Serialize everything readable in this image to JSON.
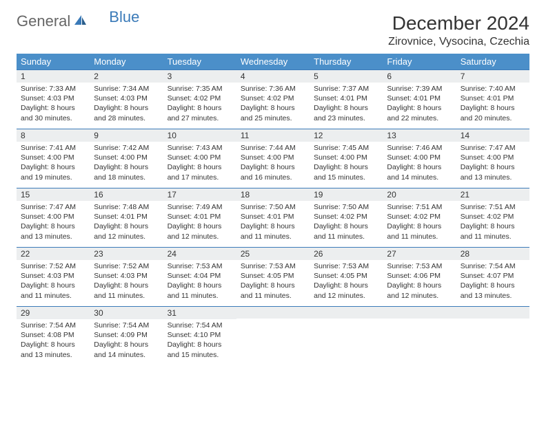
{
  "logo": {
    "part1": "General",
    "part2": "Blue"
  },
  "title": "December 2024",
  "location": "Zirovnice, Vysocina, Czechia",
  "colors": {
    "header_bg": "#4b8fc9",
    "header_text": "#ffffff",
    "daynum_bg": "#eceeef",
    "row_border": "#3a7ab8",
    "text": "#333333",
    "logo_blue": "#3a7ab8",
    "logo_gray": "#666666",
    "page_bg": "#ffffff"
  },
  "typography": {
    "base_font": "Arial",
    "title_size_pt": 21,
    "location_size_pt": 12,
    "header_size_pt": 10,
    "body_size_pt": 8
  },
  "weekdays": [
    "Sunday",
    "Monday",
    "Tuesday",
    "Wednesday",
    "Thursday",
    "Friday",
    "Saturday"
  ],
  "weeks": [
    [
      {
        "n": "1",
        "sr": "Sunrise: 7:33 AM",
        "ss": "Sunset: 4:03 PM",
        "d1": "Daylight: 8 hours",
        "d2": "and 30 minutes."
      },
      {
        "n": "2",
        "sr": "Sunrise: 7:34 AM",
        "ss": "Sunset: 4:03 PM",
        "d1": "Daylight: 8 hours",
        "d2": "and 28 minutes."
      },
      {
        "n": "3",
        "sr": "Sunrise: 7:35 AM",
        "ss": "Sunset: 4:02 PM",
        "d1": "Daylight: 8 hours",
        "d2": "and 27 minutes."
      },
      {
        "n": "4",
        "sr": "Sunrise: 7:36 AM",
        "ss": "Sunset: 4:02 PM",
        "d1": "Daylight: 8 hours",
        "d2": "and 25 minutes."
      },
      {
        "n": "5",
        "sr": "Sunrise: 7:37 AM",
        "ss": "Sunset: 4:01 PM",
        "d1": "Daylight: 8 hours",
        "d2": "and 23 minutes."
      },
      {
        "n": "6",
        "sr": "Sunrise: 7:39 AM",
        "ss": "Sunset: 4:01 PM",
        "d1": "Daylight: 8 hours",
        "d2": "and 22 minutes."
      },
      {
        "n": "7",
        "sr": "Sunrise: 7:40 AM",
        "ss": "Sunset: 4:01 PM",
        "d1": "Daylight: 8 hours",
        "d2": "and 20 minutes."
      }
    ],
    [
      {
        "n": "8",
        "sr": "Sunrise: 7:41 AM",
        "ss": "Sunset: 4:00 PM",
        "d1": "Daylight: 8 hours",
        "d2": "and 19 minutes."
      },
      {
        "n": "9",
        "sr": "Sunrise: 7:42 AM",
        "ss": "Sunset: 4:00 PM",
        "d1": "Daylight: 8 hours",
        "d2": "and 18 minutes."
      },
      {
        "n": "10",
        "sr": "Sunrise: 7:43 AM",
        "ss": "Sunset: 4:00 PM",
        "d1": "Daylight: 8 hours",
        "d2": "and 17 minutes."
      },
      {
        "n": "11",
        "sr": "Sunrise: 7:44 AM",
        "ss": "Sunset: 4:00 PM",
        "d1": "Daylight: 8 hours",
        "d2": "and 16 minutes."
      },
      {
        "n": "12",
        "sr": "Sunrise: 7:45 AM",
        "ss": "Sunset: 4:00 PM",
        "d1": "Daylight: 8 hours",
        "d2": "and 15 minutes."
      },
      {
        "n": "13",
        "sr": "Sunrise: 7:46 AM",
        "ss": "Sunset: 4:00 PM",
        "d1": "Daylight: 8 hours",
        "d2": "and 14 minutes."
      },
      {
        "n": "14",
        "sr": "Sunrise: 7:47 AM",
        "ss": "Sunset: 4:00 PM",
        "d1": "Daylight: 8 hours",
        "d2": "and 13 minutes."
      }
    ],
    [
      {
        "n": "15",
        "sr": "Sunrise: 7:47 AM",
        "ss": "Sunset: 4:00 PM",
        "d1": "Daylight: 8 hours",
        "d2": "and 13 minutes."
      },
      {
        "n": "16",
        "sr": "Sunrise: 7:48 AM",
        "ss": "Sunset: 4:01 PM",
        "d1": "Daylight: 8 hours",
        "d2": "and 12 minutes."
      },
      {
        "n": "17",
        "sr": "Sunrise: 7:49 AM",
        "ss": "Sunset: 4:01 PM",
        "d1": "Daylight: 8 hours",
        "d2": "and 12 minutes."
      },
      {
        "n": "18",
        "sr": "Sunrise: 7:50 AM",
        "ss": "Sunset: 4:01 PM",
        "d1": "Daylight: 8 hours",
        "d2": "and 11 minutes."
      },
      {
        "n": "19",
        "sr": "Sunrise: 7:50 AM",
        "ss": "Sunset: 4:02 PM",
        "d1": "Daylight: 8 hours",
        "d2": "and 11 minutes."
      },
      {
        "n": "20",
        "sr": "Sunrise: 7:51 AM",
        "ss": "Sunset: 4:02 PM",
        "d1": "Daylight: 8 hours",
        "d2": "and 11 minutes."
      },
      {
        "n": "21",
        "sr": "Sunrise: 7:51 AM",
        "ss": "Sunset: 4:02 PM",
        "d1": "Daylight: 8 hours",
        "d2": "and 11 minutes."
      }
    ],
    [
      {
        "n": "22",
        "sr": "Sunrise: 7:52 AM",
        "ss": "Sunset: 4:03 PM",
        "d1": "Daylight: 8 hours",
        "d2": "and 11 minutes."
      },
      {
        "n": "23",
        "sr": "Sunrise: 7:52 AM",
        "ss": "Sunset: 4:03 PM",
        "d1": "Daylight: 8 hours",
        "d2": "and 11 minutes."
      },
      {
        "n": "24",
        "sr": "Sunrise: 7:53 AM",
        "ss": "Sunset: 4:04 PM",
        "d1": "Daylight: 8 hours",
        "d2": "and 11 minutes."
      },
      {
        "n": "25",
        "sr": "Sunrise: 7:53 AM",
        "ss": "Sunset: 4:05 PM",
        "d1": "Daylight: 8 hours",
        "d2": "and 11 minutes."
      },
      {
        "n": "26",
        "sr": "Sunrise: 7:53 AM",
        "ss": "Sunset: 4:05 PM",
        "d1": "Daylight: 8 hours",
        "d2": "and 12 minutes."
      },
      {
        "n": "27",
        "sr": "Sunrise: 7:53 AM",
        "ss": "Sunset: 4:06 PM",
        "d1": "Daylight: 8 hours",
        "d2": "and 12 minutes."
      },
      {
        "n": "28",
        "sr": "Sunrise: 7:54 AM",
        "ss": "Sunset: 4:07 PM",
        "d1": "Daylight: 8 hours",
        "d2": "and 13 minutes."
      }
    ],
    [
      {
        "n": "29",
        "sr": "Sunrise: 7:54 AM",
        "ss": "Sunset: 4:08 PM",
        "d1": "Daylight: 8 hours",
        "d2": "and 13 minutes."
      },
      {
        "n": "30",
        "sr": "Sunrise: 7:54 AM",
        "ss": "Sunset: 4:09 PM",
        "d1": "Daylight: 8 hours",
        "d2": "and 14 minutes."
      },
      {
        "n": "31",
        "sr": "Sunrise: 7:54 AM",
        "ss": "Sunset: 4:10 PM",
        "d1": "Daylight: 8 hours",
        "d2": "and 15 minutes."
      },
      {
        "n": "",
        "sr": "",
        "ss": "",
        "d1": "",
        "d2": ""
      },
      {
        "n": "",
        "sr": "",
        "ss": "",
        "d1": "",
        "d2": ""
      },
      {
        "n": "",
        "sr": "",
        "ss": "",
        "d1": "",
        "d2": ""
      },
      {
        "n": "",
        "sr": "",
        "ss": "",
        "d1": "",
        "d2": ""
      }
    ]
  ]
}
